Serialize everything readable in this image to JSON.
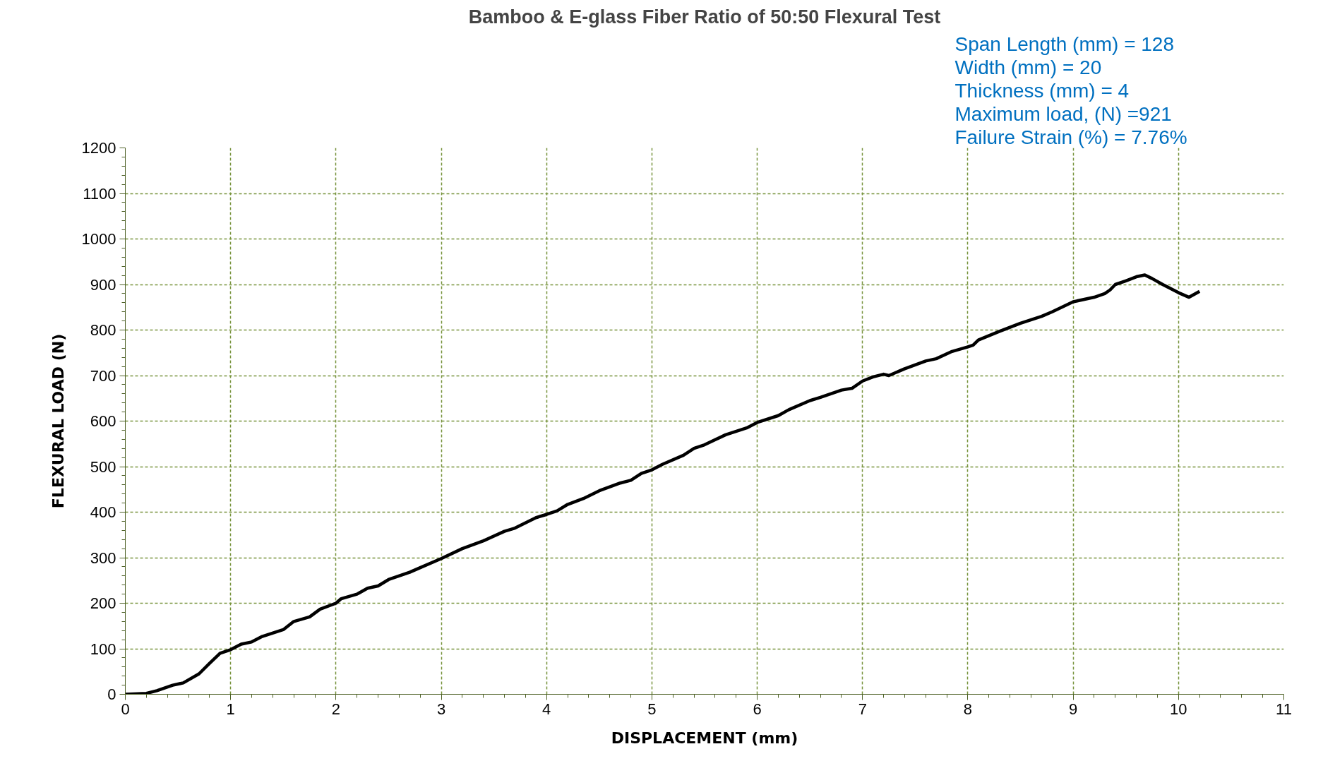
{
  "chart_data": {
    "type": "line",
    "title": "Bamboo & E-glass Fiber Ratio of 50:50 Flexural Test",
    "xlabel": "DISPLACEMENT (mm)",
    "ylabel": "FLEXURAL LOAD (N)",
    "annotations": [
      "Span Length (mm) = 128",
      "Width (mm) = 20",
      "Thickness (mm) = 4",
      "Maximum load, (N) =921",
      "Failure Strain (%) = 7.76%"
    ],
    "xlim": [
      0,
      11
    ],
    "xticks": [
      0,
      1,
      2,
      3,
      4,
      5,
      6,
      7,
      8,
      9,
      10,
      11
    ],
    "ylim": [
      0,
      1200
    ],
    "yticks": [
      0,
      100,
      200,
      300,
      400,
      500,
      600,
      700,
      800,
      900,
      1000,
      1100,
      1200
    ],
    "grid": true,
    "line_style": "solid",
    "marker": "none",
    "series": [
      {
        "color": "#000000",
        "x": [
          0,
          0.2,
          0.3,
          0.45,
          0.55,
          0.7,
          0.8,
          0.9,
          1.0,
          1.1,
          1.2,
          1.3,
          1.5,
          1.6,
          1.75,
          1.85,
          2.0,
          2.05,
          2.2,
          2.3,
          2.4,
          2.5,
          2.7,
          2.8,
          3.0,
          3.2,
          3.4,
          3.6,
          3.7,
          3.9,
          4.0,
          4.1,
          4.2,
          4.35,
          4.5,
          4.7,
          4.8,
          4.9,
          5.0,
          5.1,
          5.3,
          5.4,
          5.5,
          5.7,
          5.9,
          6.0,
          6.2,
          6.3,
          6.5,
          6.6,
          6.8,
          6.9,
          7.0,
          7.1,
          7.2,
          7.25,
          7.4,
          7.6,
          7.7,
          7.85,
          8.0,
          8.05,
          8.1,
          8.3,
          8.5,
          8.7,
          8.8,
          9.0,
          9.2,
          9.3,
          9.35,
          9.4,
          9.5,
          9.6,
          9.68,
          9.75,
          9.85,
          10.0,
          10.1,
          10.2
        ],
        "values": [
          0,
          2,
          8,
          20,
          25,
          45,
          68,
          90,
          98,
          110,
          115,
          127,
          142,
          160,
          170,
          187,
          200,
          210,
          220,
          233,
          238,
          252,
          268,
          278,
          298,
          320,
          337,
          358,
          365,
          388,
          395,
          403,
          417,
          430,
          447,
          464,
          470,
          485,
          493,
          505,
          525,
          540,
          548,
          570,
          585,
          597,
          612,
          625,
          645,
          652,
          668,
          672,
          688,
          697,
          703,
          700,
          715,
          732,
          737,
          753,
          763,
          767,
          778,
          797,
          815,
          830,
          840,
          862,
          872,
          880,
          888,
          900,
          908,
          917,
          921,
          913,
          900,
          882,
          872,
          885
        ]
      }
    ]
  }
}
